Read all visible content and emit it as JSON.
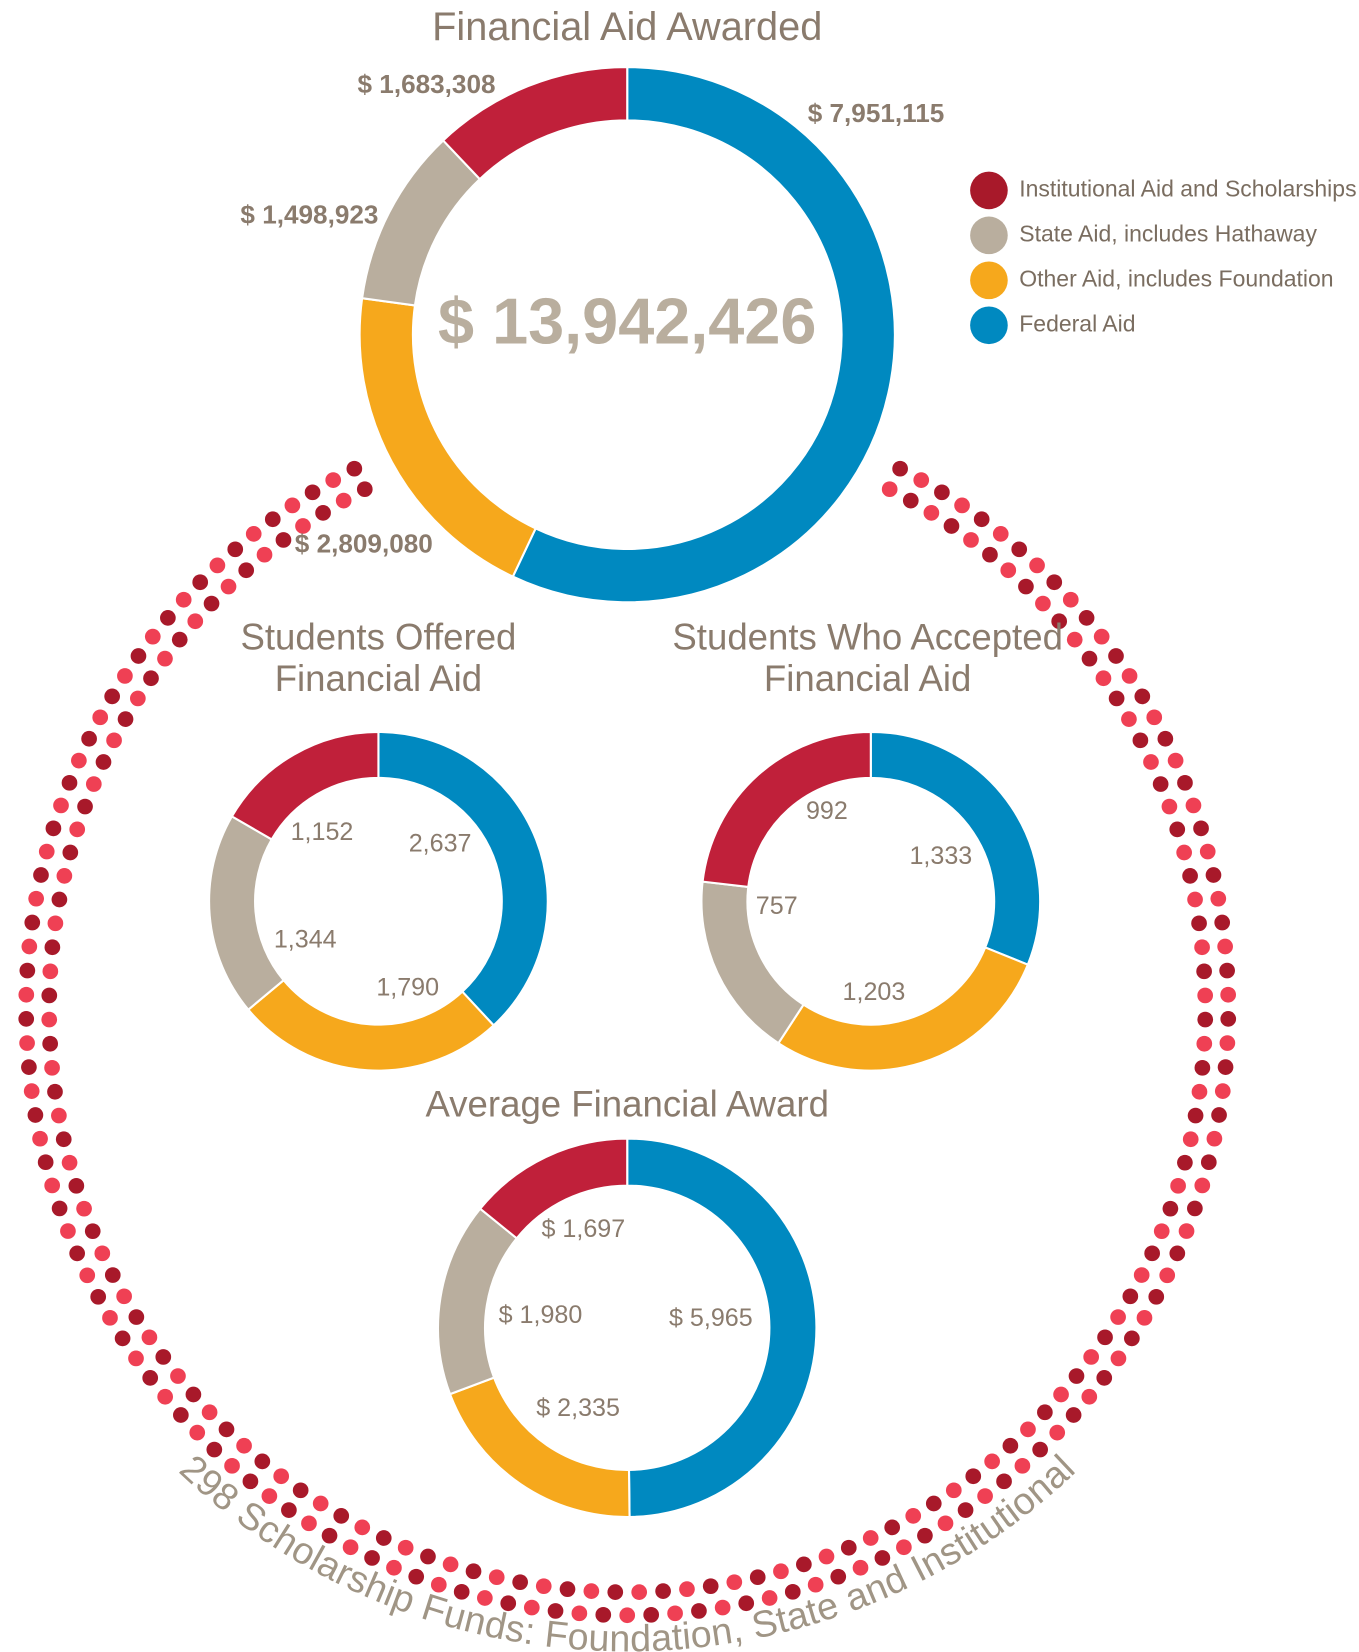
{
  "chart_data": [
    {
      "type": "donut",
      "title": "Financial Aid Awarded",
      "center_label": "$ 13,942,426",
      "categories": [
        "Federal Aid",
        "Other Aid, includes Foundation",
        "State Aid, includes Hathaway",
        "Institutional Aid and Scholarships"
      ],
      "colors": [
        "#0089c0",
        "#f6a81c",
        "#b9ae9e",
        "#c0203a"
      ],
      "values": [
        7951115,
        2809080,
        1498923,
        1683308
      ],
      "value_labels": [
        "$ 7,951,115",
        "$ 2,809,080",
        "$ 1,498,923",
        "$ 1,683,308"
      ]
    },
    {
      "type": "donut",
      "title": "Students Offered Financial Aid",
      "categories": [
        "Federal Aid",
        "Other Aid, includes Foundation",
        "State Aid, includes Hathaway",
        "Institutional Aid and Scholarships"
      ],
      "colors": [
        "#0089c0",
        "#f6a81c",
        "#b9ae9e",
        "#c0203a"
      ],
      "values": [
        2637,
        1790,
        1344,
        1152
      ],
      "value_labels": [
        "2,637",
        "1,790",
        "1,344",
        "1,152"
      ]
    },
    {
      "type": "donut",
      "title": "Students Who Accepted Financial Aid",
      "categories": [
        "Federal Aid",
        "Other Aid, includes Foundation",
        "State Aid, includes Hathaway",
        "Institutional Aid and Scholarships"
      ],
      "colors": [
        "#0089c0",
        "#f6a81c",
        "#b9ae9e",
        "#c0203a"
      ],
      "values": [
        1333,
        1203,
        757,
        992
      ],
      "value_labels": [
        "1,333",
        "1,203",
        "757",
        "992"
      ]
    },
    {
      "type": "donut",
      "title": "Average Financial Award",
      "categories": [
        "Federal Aid",
        "Other Aid, includes Foundation",
        "State Aid, includes Hathaway",
        "Institutional Aid and Scholarships"
      ],
      "colors": [
        "#0089c0",
        "#f6a81c",
        "#b9ae9e",
        "#c0203a"
      ],
      "values": [
        5965,
        2335,
        1980,
        1697
      ],
      "value_labels": [
        "$ 5,965",
        "$ 2,335",
        "$ 1,980",
        "$ 1,697"
      ]
    }
  ],
  "legend": {
    "items": [
      "Institutional Aid and Scholarships",
      "State Aid, includes Hathaway",
      "Other Aid, includes Foundation",
      "Federal Aid"
    ],
    "colors": [
      "#a8192a",
      "#b9ae9e",
      "#f6a81c",
      "#0089c0"
    ]
  },
  "footer": "298 Scholarship Funds: Foundation, State and Institutional"
}
